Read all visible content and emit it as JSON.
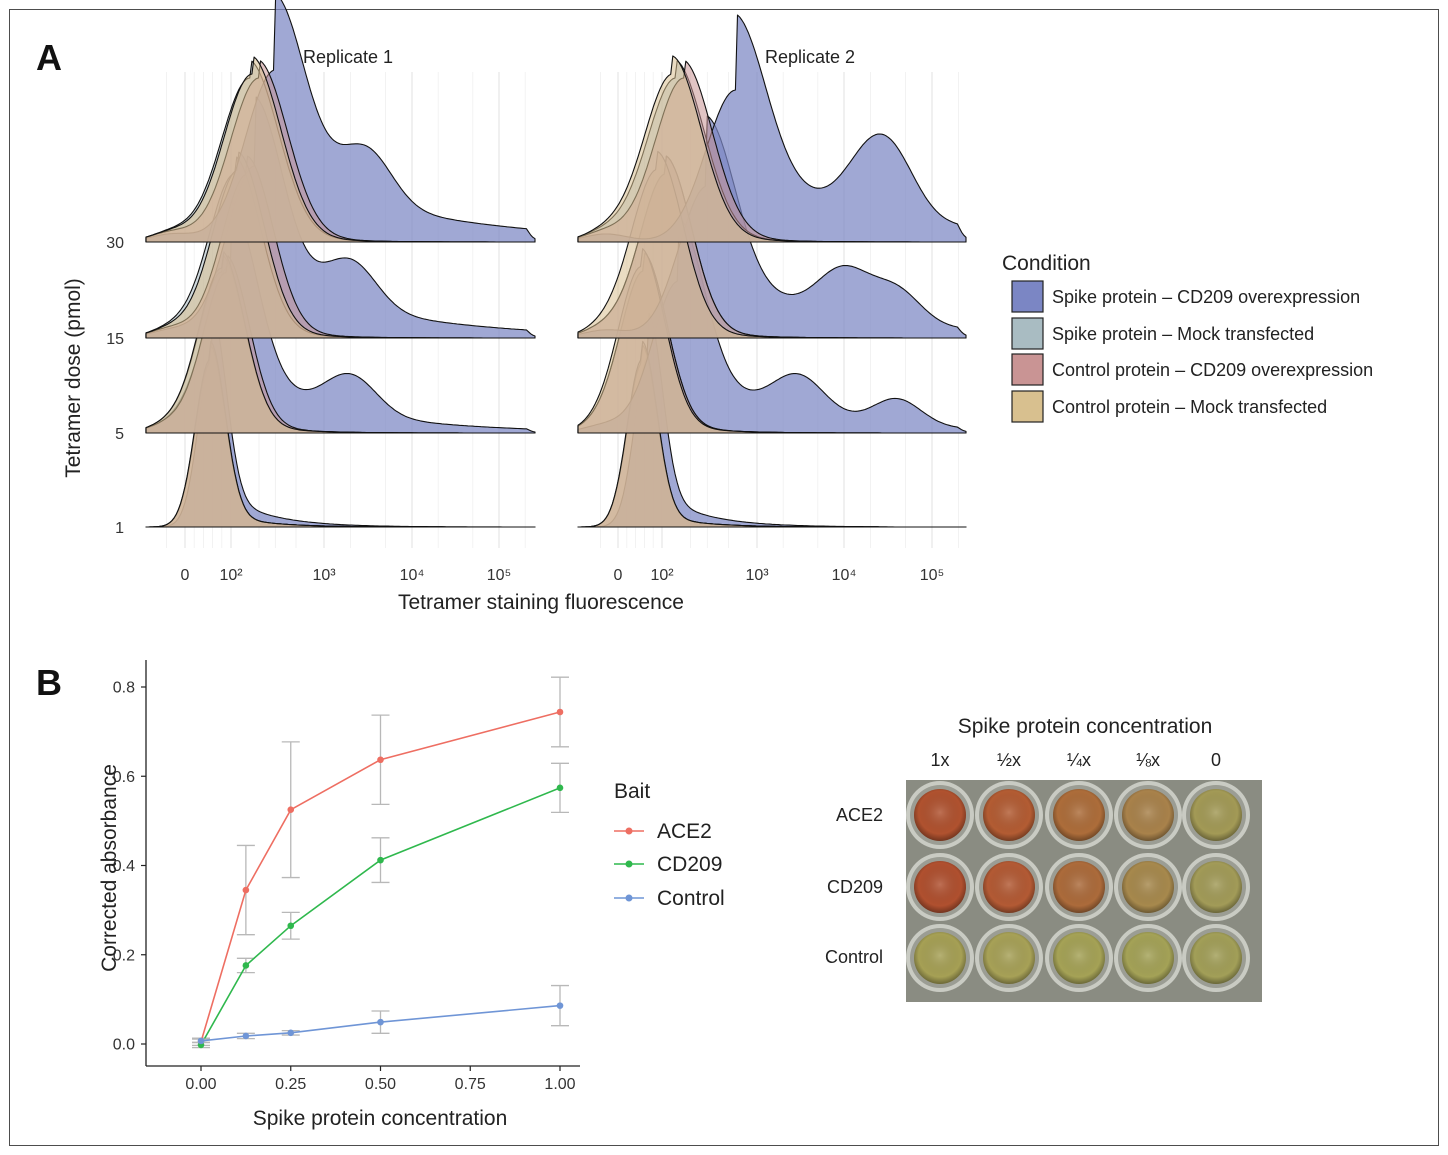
{
  "figure": {
    "panel_a_letter": "A",
    "panel_b_letter": "B",
    "colors": {
      "spike_cd209": "#7b86c4",
      "spike_mock": "#a9bcc2",
      "control_cd209": "#c99494",
      "control_mock": "#d8c08f",
      "ace2": "#ee6e62",
      "cd209_line": "#2fb84d",
      "control_line": "#6f95d6",
      "errorbar": "#b8b8b8"
    }
  },
  "chart_data": [
    {
      "type": "area",
      "subtype": "ridgeline-density",
      "panels": [
        "Replicate 1",
        "Replicate 2"
      ],
      "xlabel": "Tetramer staining fluorescence",
      "ylabel": "Tetramer dose (pmol)",
      "xscale": "biexponential",
      "x_ticks": [
        {
          "value": 0,
          "label": "0"
        },
        {
          "value": 100,
          "label": "10²"
        },
        {
          "value": 1000,
          "label": "10³"
        },
        {
          "value": 10000,
          "label": "10⁴"
        },
        {
          "value": 100000,
          "label": "10⁵"
        }
      ],
      "y_ticks": [
        "30",
        "15",
        "5",
        "1"
      ],
      "legend_title": "Condition",
      "legend_position": "right",
      "series": [
        {
          "name": "Spike protein – CD209 overexpression",
          "color": "#7b86c4"
        },
        {
          "name": "Spike protein – Mock transfected",
          "color": "#a9bcc2"
        },
        {
          "name": "Control protein – CD209 overexpression",
          "color": "#c99494"
        },
        {
          "name": "Control protein – Mock transfected",
          "color": "#d8c08f"
        }
      ],
      "ridges": {
        "Replicate 1": {
          "1": {
            "Spike protein – CD209 overexpression": {
              "peak_x": 60,
              "tail_to": 100000
            },
            "Spike protein – Mock transfected": {
              "peak_x": 55
            },
            "Control protein – CD209 overexpression": {
              "peak_x": 55
            },
            "Control protein – Mock transfected": {
              "peak_x": 55
            }
          },
          "5": {
            "Spike protein – CD209 overexpression": {
              "peak_x": 100,
              "shoulder_x": 2000
            },
            "Spike protein – Mock transfected": {
              "peak_x": 80
            },
            "Control protein – CD209 overexpression": {
              "peak_x": 90
            },
            "Control protein – Mock transfected": {
              "peak_x": 80
            }
          },
          "15": {
            "Spike protein – CD209 overexpression": {
              "peak_x": 180,
              "shoulder_x": 2000
            },
            "Spike protein – Mock transfected": {
              "peak_x": 110
            },
            "Control protein – CD209 overexpression": {
              "peak_x": 150
            },
            "Control protein – Mock transfected": {
              "peak_x": 120
            }
          },
          "30": {
            "Spike protein – CD209 overexpression": {
              "peak_x": 300,
              "shoulder_x": 3000
            },
            "Spike protein – Mock transfected": {
              "peak_x": 160
            },
            "Control protein – CD209 overexpression": {
              "peak_x": 200
            },
            "Control protein – Mock transfected": {
              "peak_x": 170
            }
          }
        },
        "Replicate 2": {
          "1": {
            "Spike protein – CD209 overexpression": {
              "peak_x": 70,
              "tail_to": 30000
            },
            "Spike protein – Mock transfected": {
              "peak_x": 55
            },
            "Control protein – CD209 overexpression": {
              "peak_x": 55
            },
            "Control protein – Mock transfected": {
              "peak_x": 55
            }
          },
          "5": {
            "Spike protein – CD209 overexpression": {
              "peak_x": 150,
              "shoulder_x": 3000
            },
            "Spike protein – Mock transfected": {
              "peak_x": 60
            },
            "Control protein – CD209 overexpression": {
              "peak_x": 60
            },
            "Control protein – Mock transfected": {
              "peak_x": 55
            }
          },
          "15": {
            "Spike protein – CD209 overexpression": {
              "peak_x": 300,
              "shoulder_x": 10000
            },
            "Spike protein – Mock transfected": {
              "peak_x": 110
            },
            "Control protein – CD209 overexpression": {
              "peak_x": 110
            },
            "Control protein – Mock transfected": {
              "peak_x": 90
            }
          },
          "30": {
            "Spike protein – CD209 overexpression": {
              "peak_x": 600,
              "shoulder_x": 20000
            },
            "Spike protein – Mock transfected": {
              "peak_x": 140
            },
            "Control protein – CD209 overexpression": {
              "peak_x": 170
            },
            "Control protein – Mock transfected": {
              "peak_x": 130
            }
          }
        }
      }
    },
    {
      "type": "line",
      "xlabel": "Spike protein concentration",
      "ylabel": "Corrected absorbance",
      "xlim": [
        0,
        1
      ],
      "ylim": [
        0,
        0.8
      ],
      "x_ticks": [
        "0.00",
        "0.25",
        "0.50",
        "0.75",
        "1.00"
      ],
      "y_ticks": [
        "0.0",
        "0.2",
        "0.4",
        "0.6",
        "0.8"
      ],
      "legend_title": "Bait",
      "legend_position": "right",
      "x": [
        0,
        0.125,
        0.25,
        0.5,
        1.0
      ],
      "series": [
        {
          "name": "ACE2",
          "color": "#ee6e62",
          "values": [
            0.005,
            0.345,
            0.525,
            0.637,
            0.744
          ],
          "err": [
            0.008,
            0.1,
            0.152,
            0.1,
            0.078
          ]
        },
        {
          "name": "CD209",
          "color": "#2fb84d",
          "values": [
            -0.002,
            0.176,
            0.265,
            0.412,
            0.574
          ],
          "err": [
            0.006,
            0.016,
            0.03,
            0.05,
            0.055
          ]
        },
        {
          "name": "Control",
          "color": "#6f95d6",
          "values": [
            0.007,
            0.018,
            0.025,
            0.049,
            0.086
          ],
          "err": [
            0.004,
            0.006,
            0.005,
            0.025,
            0.045
          ]
        }
      ]
    }
  ],
  "plate": {
    "title": "Spike protein concentration",
    "columns": [
      "1x",
      "½x",
      "¼x",
      "⅛x",
      "0"
    ],
    "rows": [
      "ACE2",
      "CD209",
      "Control"
    ],
    "well_colors": [
      [
        "#b0522f",
        "#b35c33",
        "#ad6d3a",
        "#a9824b",
        "#a39a56"
      ],
      [
        "#b0502f",
        "#b35a34",
        "#ac6b3b",
        "#a7894d",
        "#a29b58"
      ],
      [
        "#a6a055",
        "#a7a157",
        "#a5a256",
        "#a4a257",
        "#a29f58"
      ]
    ],
    "plate_background": "#8a8c82"
  }
}
